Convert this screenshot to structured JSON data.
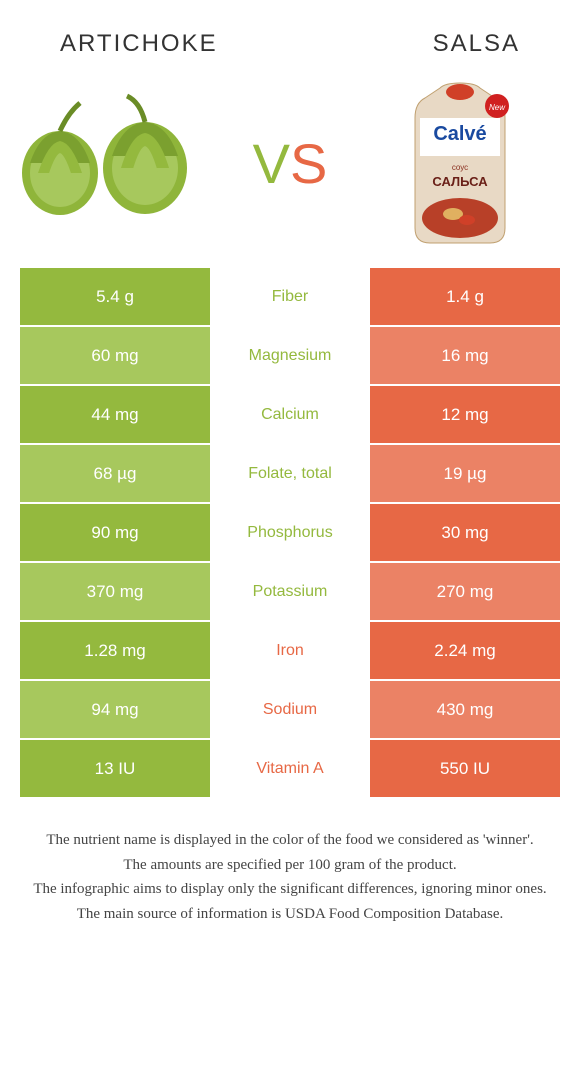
{
  "header": {
    "left": "ARTICHOKE",
    "right": "SALSA"
  },
  "vs": {
    "v": "V",
    "s": "S"
  },
  "colors": {
    "green_dark": "#94b93e",
    "green_light": "#a7c85d",
    "orange_dark": "#e76845",
    "orange_light": "#eb8265",
    "text": "#333333",
    "white": "#ffffff"
  },
  "table": {
    "rows": [
      {
        "left": "5.4 g",
        "label": "Fiber",
        "right": "1.4 g",
        "winner": "left"
      },
      {
        "left": "60 mg",
        "label": "Magnesium",
        "right": "16 mg",
        "winner": "left"
      },
      {
        "left": "44 mg",
        "label": "Calcium",
        "right": "12 mg",
        "winner": "left"
      },
      {
        "left": "68 µg",
        "label": "Folate, total",
        "right": "19 µg",
        "winner": "left"
      },
      {
        "left": "90 mg",
        "label": "Phosphorus",
        "right": "30 mg",
        "winner": "left"
      },
      {
        "left": "370 mg",
        "label": "Potassium",
        "right": "270 mg",
        "winner": "left"
      },
      {
        "left": "1.28 mg",
        "label": "Iron",
        "right": "2.24 mg",
        "winner": "right"
      },
      {
        "left": "94 mg",
        "label": "Sodium",
        "right": "430 mg",
        "winner": "right"
      },
      {
        "left": "13 IU",
        "label": "Vitamin A",
        "right": "550 IU",
        "winner": "right"
      }
    ]
  },
  "footer": {
    "line1": "The nutrient name is displayed in the color of the food we considered as 'winner'.",
    "line2": "The amounts are specified per 100 gram of the product.",
    "line3": "The infographic aims to display only the significant differences, ignoring minor ones.",
    "line4": "The main source of information is USDA Food Composition Database."
  },
  "salsa_packet": {
    "brand": "Calvé",
    "product": "САЛЬСА",
    "badge": "New",
    "subtitle": "соус"
  }
}
